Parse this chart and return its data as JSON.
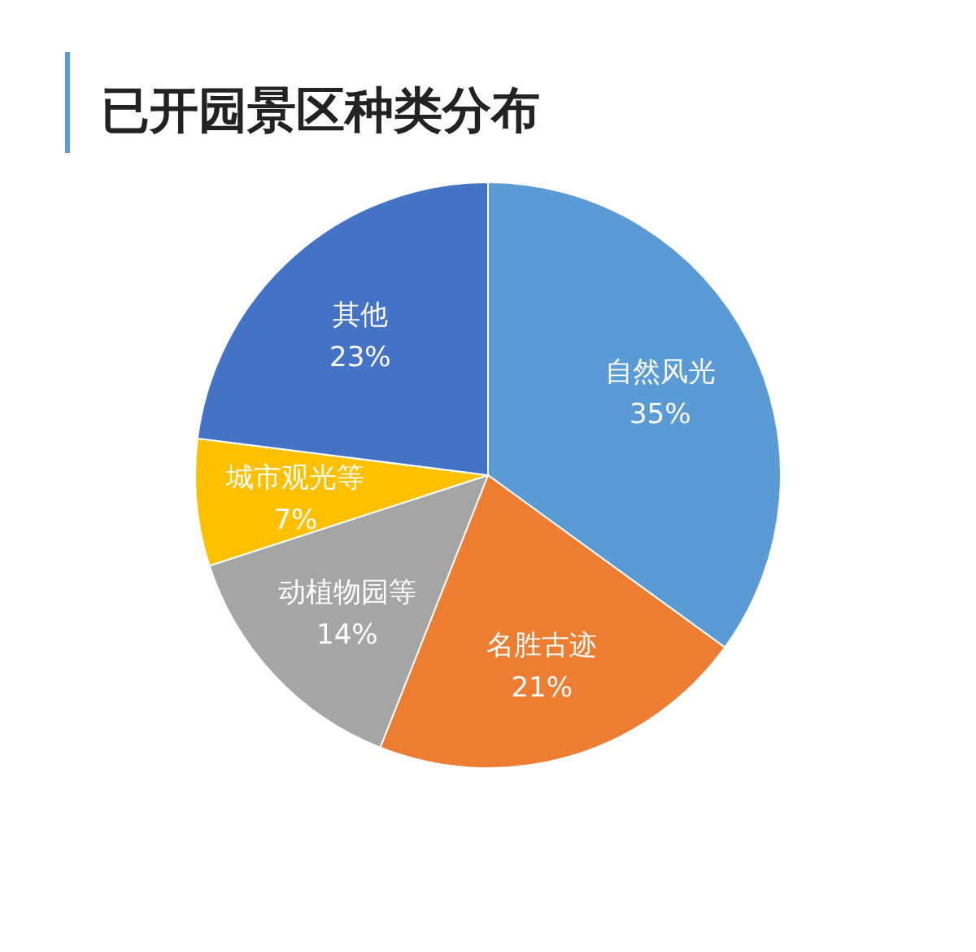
{
  "chart_data": {
    "type": "pie",
    "title": "已开园景区种类分布",
    "categories": [
      "自然风光",
      "名胜古迹",
      "动植物园等",
      "城市观光等",
      "其他"
    ],
    "values": [
      35,
      21,
      14,
      7,
      23
    ],
    "value_labels": [
      "35%",
      "21%",
      "14%",
      "7%",
      "23%"
    ],
    "colors": [
      "#5b9bd5",
      "#ed7d31",
      "#a5a5a5",
      "#ffc000",
      "#4472c4"
    ]
  }
}
